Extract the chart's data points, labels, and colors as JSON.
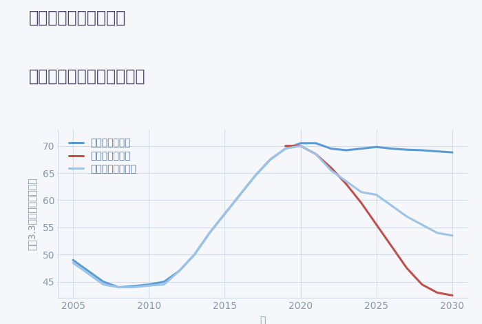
{
  "title_line1": "福岡県太宰府市三条の",
  "title_line2": "中古マンションの価格推移",
  "xlabel": "年",
  "ylabel": "坪（3.3㎡）単価（万円）",
  "background_color": "#f5f7fa",
  "plot_bg_color": "#f5f7fa",
  "xlim": [
    2004,
    2031
  ],
  "ylim": [
    42,
    73
  ],
  "xticks": [
    2005,
    2010,
    2015,
    2020,
    2025,
    2030
  ],
  "yticks": [
    45,
    50,
    55,
    60,
    65,
    70
  ],
  "good_scenario": {
    "label": "グッドシナリオ",
    "color": "#5b9bd5",
    "x": [
      2005,
      2007,
      2008,
      2009,
      2010,
      2011,
      2012,
      2013,
      2014,
      2015,
      2016,
      2017,
      2018,
      2019,
      2020,
      2021,
      2022,
      2023,
      2024,
      2025,
      2026,
      2027,
      2028,
      2029,
      2030
    ],
    "y": [
      49.0,
      45.0,
      44.0,
      44.2,
      44.5,
      45.0,
      47.0,
      50.0,
      54.0,
      57.5,
      61.0,
      64.5,
      67.5,
      69.5,
      70.5,
      70.5,
      69.5,
      69.2,
      69.5,
      69.8,
      69.5,
      69.3,
      69.2,
      69.0,
      68.8
    ]
  },
  "bad_scenario": {
    "label": "バッドシナリオ",
    "color": "#c0504d",
    "x": [
      2019,
      2020,
      2021,
      2022,
      2023,
      2024,
      2025,
      2026,
      2027,
      2028,
      2029,
      2030
    ],
    "y": [
      70.0,
      70.0,
      68.5,
      66.0,
      63.0,
      59.5,
      55.5,
      51.5,
      47.5,
      44.5,
      43.0,
      42.5
    ]
  },
  "normal_scenario": {
    "label": "ノーマルシナリオ",
    "color": "#9dc3e6",
    "x": [
      2005,
      2007,
      2008,
      2009,
      2010,
      2011,
      2012,
      2013,
      2014,
      2015,
      2016,
      2017,
      2018,
      2019,
      2020,
      2021,
      2022,
      2023,
      2024,
      2025,
      2026,
      2027,
      2028,
      2029,
      2030
    ],
    "y": [
      48.5,
      44.5,
      44.0,
      44.0,
      44.3,
      44.5,
      47.0,
      50.0,
      54.0,
      57.5,
      61.0,
      64.5,
      67.5,
      69.5,
      70.0,
      68.5,
      65.5,
      63.5,
      61.5,
      61.0,
      59.0,
      57.0,
      55.5,
      54.0,
      53.5
    ]
  },
  "title_color": "#4a4a6a",
  "axis_color": "#8898aa",
  "grid_color": "#d0dce8",
  "legend_text_color": "#5b7a9d",
  "title_fontsize": 17,
  "axis_label_fontsize": 10,
  "tick_fontsize": 10,
  "legend_fontsize": 10,
  "line_width": 2.2
}
